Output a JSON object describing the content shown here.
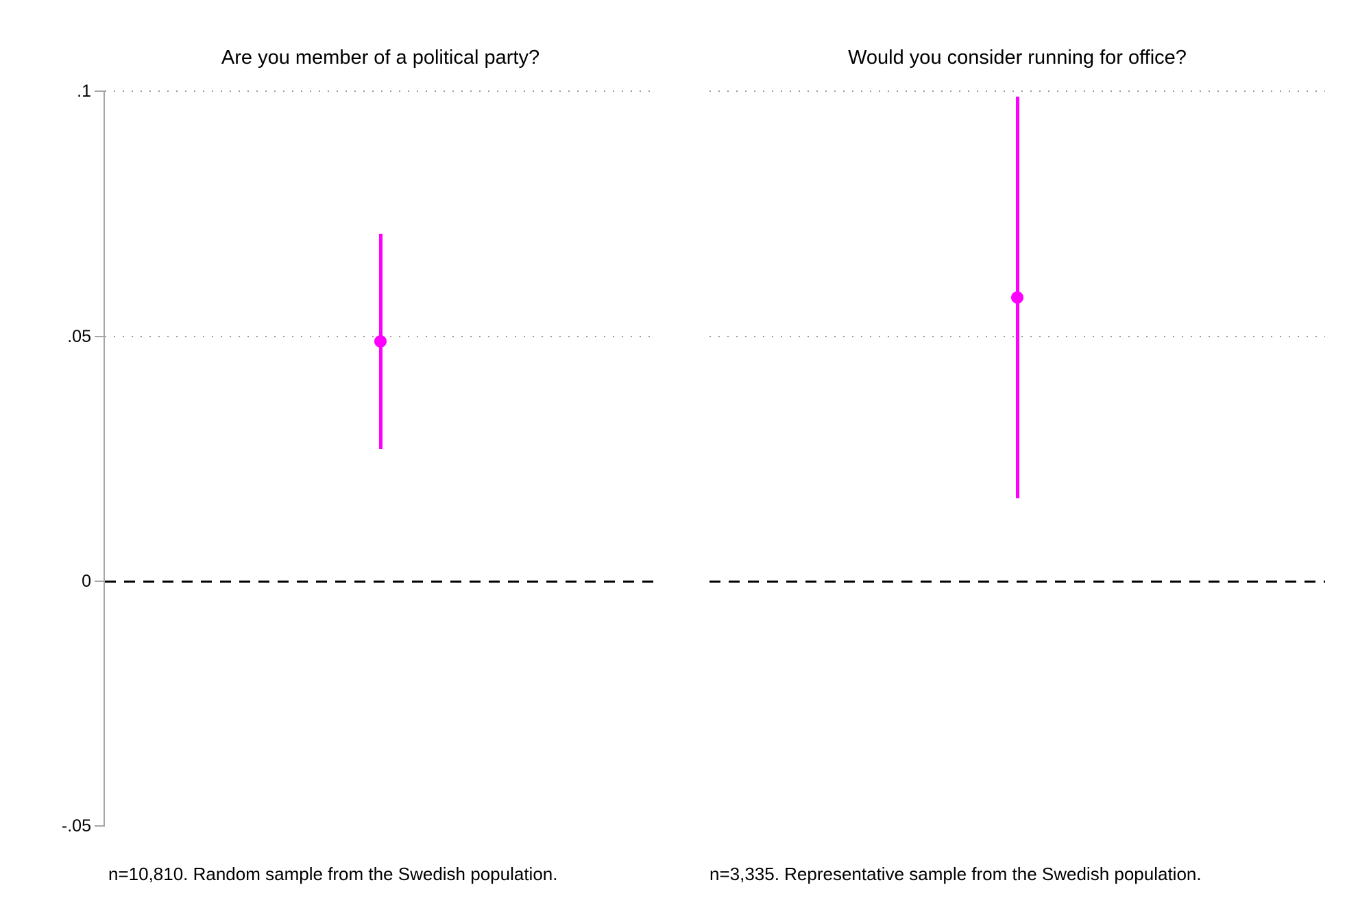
{
  "figure": {
    "background": "#ffffff",
    "accent_color": "#ff00ff"
  },
  "chart_data": [
    {
      "type": "scatter",
      "title": "Are you member of a political party?",
      "note": "n=10,810. Random sample from the Swedish population.",
      "point_estimate": 0.049,
      "ci_low": 0.027,
      "ci_high": 0.071,
      "ylim": [
        -0.05,
        0.1
      ],
      "yticks": [
        0.1,
        0.05,
        0,
        -0.05
      ],
      "ytick_labels": [
        ".1",
        ".05",
        "0",
        "-.05"
      ],
      "dotted_gridlines_at": [
        0.1,
        0.05
      ],
      "dashed_reference_line_at": 0,
      "marker_color": "#ff00ff",
      "legend": "none",
      "xlabel": "",
      "ylabel": ""
    },
    {
      "type": "scatter",
      "title": "Would you consider running for office?",
      "note": "n=3,335. Representative sample from the Swedish population.",
      "point_estimate": 0.058,
      "ci_low": 0.017,
      "ci_high": 0.099,
      "ylim": [
        -0.05,
        0.1
      ],
      "yticks": [
        0.1,
        0.05,
        0,
        -0.05
      ],
      "ytick_labels": [
        ".1",
        ".05",
        "0",
        "-.05"
      ],
      "dotted_gridlines_at": [
        0.1,
        0.05
      ],
      "dashed_reference_line_at": 0,
      "marker_color": "#ff00ff",
      "legend": "none",
      "xlabel": "",
      "ylabel": ""
    }
  ]
}
